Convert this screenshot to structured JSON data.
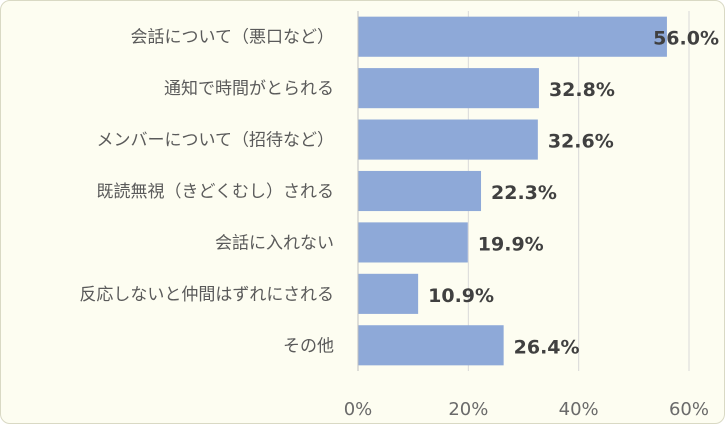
{
  "chart_data": {
    "type": "bar",
    "orientation": "horizontal",
    "categories": [
      "会話について（悪口など）",
      "通知で時間がとられる",
      "メンバーについて（招待など）",
      "既読無視（きどくむし）される",
      "会話に入れない",
      "反応しないと仲間はずれにされる",
      "その他"
    ],
    "values": [
      56.0,
      32.8,
      32.6,
      22.3,
      19.9,
      10.9,
      26.4
    ],
    "value_labels": [
      "56.0%",
      "32.8%",
      "32.6%",
      "22.3%",
      "19.9%",
      "10.9%",
      "26.4%"
    ],
    "x_ticks": [
      "0%",
      "20%",
      "40%",
      "60%"
    ],
    "xlim": [
      0,
      60
    ],
    "grid": true,
    "colors": {
      "bar": "#8ea9d8",
      "background": "#fdfdf1",
      "grid": "#d9d9d9"
    }
  }
}
